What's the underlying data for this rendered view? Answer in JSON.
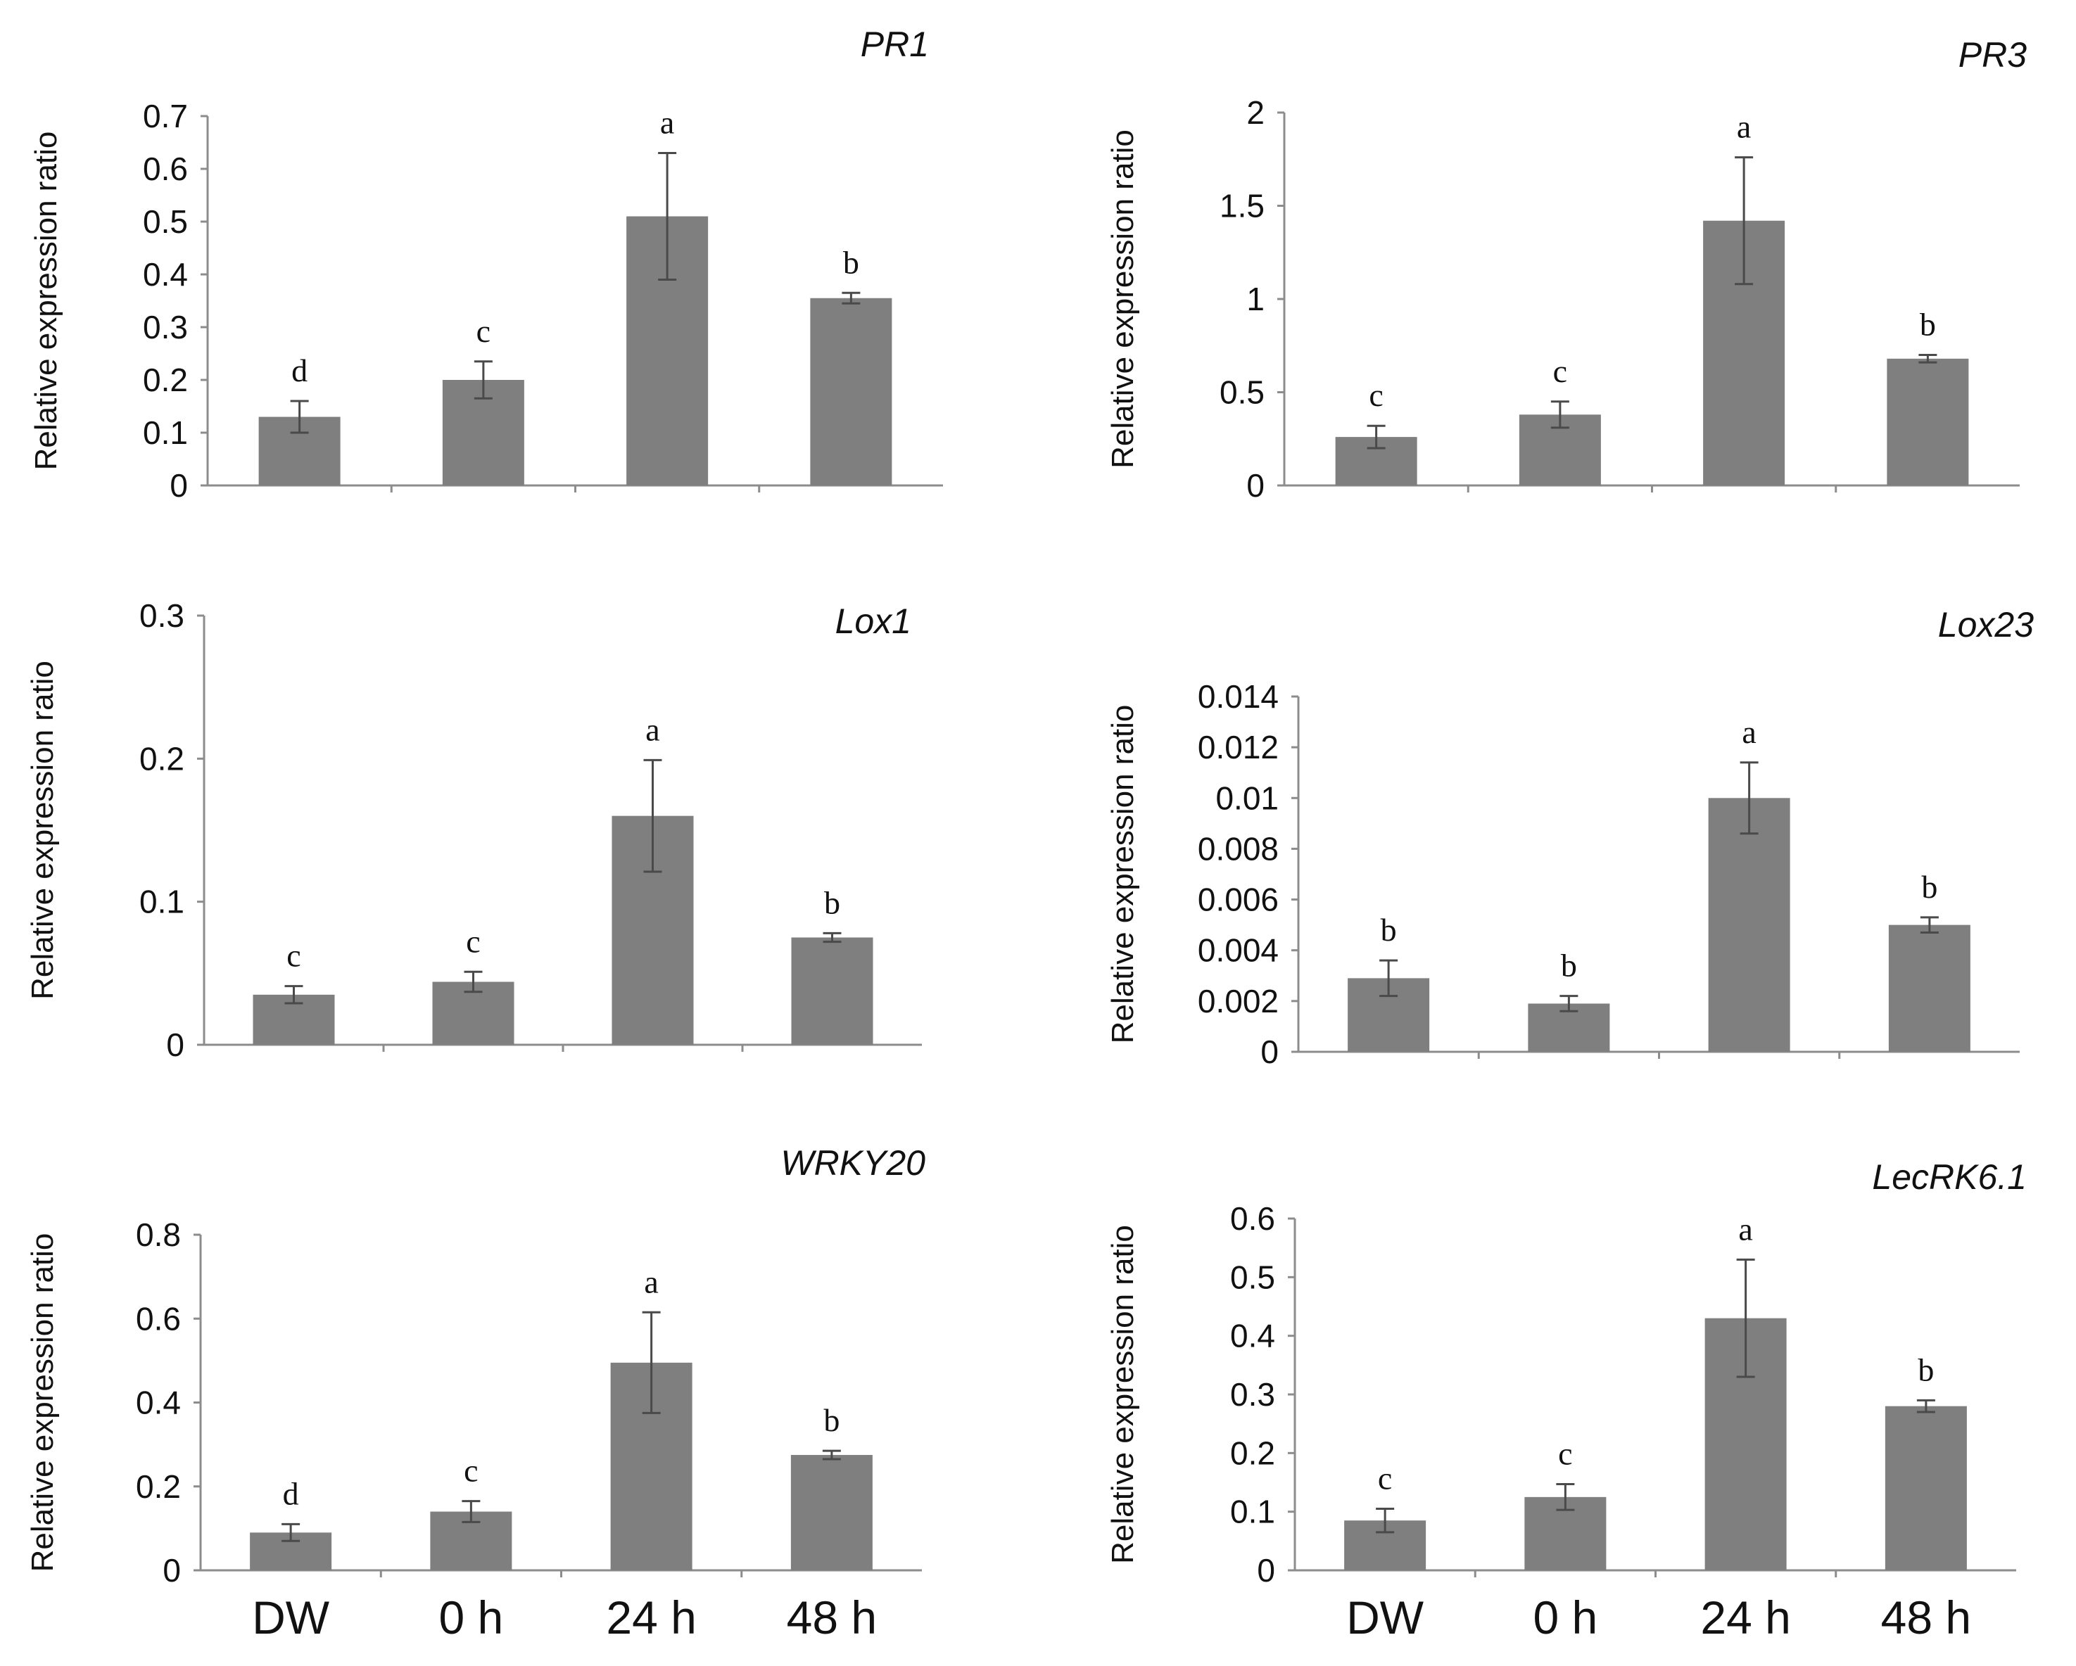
{
  "chart_data": [
    {
      "type": "bar",
      "title": "PR1",
      "ylabel": "Relative expression ratio",
      "categories": [
        "DW",
        "0 h",
        "24 h",
        "48 h"
      ],
      "values": [
        0.13,
        0.2,
        0.51,
        0.355
      ],
      "errors": [
        0.03,
        0.035,
        0.12,
        0.01
      ],
      "significance": [
        "d",
        "c",
        "a",
        "b"
      ],
      "ylim": [
        0,
        0.7
      ],
      "yticks": [
        "0",
        "0.1",
        "0.2",
        "0.3",
        "0.4",
        "0.5",
        "0.6",
        "0.7"
      ],
      "show_xlabels": false
    },
    {
      "type": "bar",
      "title": "PR3",
      "ylabel": "Relative expression ratio",
      "categories": [
        "DW",
        "0 h",
        "24 h",
        "48 h"
      ],
      "values": [
        0.26,
        0.38,
        1.42,
        0.68
      ],
      "errors": [
        0.06,
        0.07,
        0.34,
        0.02
      ],
      "significance": [
        "c",
        "c",
        "a",
        "b"
      ],
      "ylim": [
        0,
        2
      ],
      "yticks": [
        "0",
        "0.5",
        "1",
        "1.5",
        "2"
      ],
      "show_xlabels": false
    },
    {
      "type": "bar",
      "title": "Lox1",
      "ylabel": "Relative expression ratio",
      "categories": [
        "DW",
        "0 h",
        "24 h",
        "48 h"
      ],
      "values": [
        0.035,
        0.044,
        0.16,
        0.075
      ],
      "errors": [
        0.006,
        0.007,
        0.039,
        0.003
      ],
      "significance": [
        "c",
        "c",
        "a",
        "b"
      ],
      "ylim": [
        0,
        0.3
      ],
      "yticks": [
        "0",
        "0.1",
        "0.2",
        "0.3"
      ],
      "show_xlabels": false
    },
    {
      "type": "bar",
      "title": "Lox23",
      "ylabel": "Relative expression ratio",
      "categories": [
        "DW",
        "0 h",
        "24 h",
        "48 h"
      ],
      "values": [
        0.0029,
        0.0019,
        0.01,
        0.005
      ],
      "errors": [
        0.0007,
        0.0003,
        0.0014,
        0.0003
      ],
      "significance": [
        "b",
        "b",
        "a",
        "b"
      ],
      "ylim": [
        0,
        0.014
      ],
      "yticks": [
        "0",
        "0.002",
        "0.004",
        "0.006",
        "0.008",
        "0.01",
        "0.012",
        "0.014"
      ],
      "show_xlabels": false
    },
    {
      "type": "bar",
      "title": "WRKY20",
      "ylabel": "Relative expression ratio",
      "categories": [
        "DW",
        "0 h",
        "24 h",
        "48 h"
      ],
      "values": [
        0.09,
        0.14,
        0.495,
        0.275
      ],
      "errors": [
        0.02,
        0.025,
        0.12,
        0.01
      ],
      "significance": [
        "d",
        "c",
        "a",
        "b"
      ],
      "ylim": [
        0,
        0.8
      ],
      "yticks": [
        "0",
        "0.2",
        "0.4",
        "0.6",
        "0.8"
      ],
      "show_xlabels": true
    },
    {
      "type": "bar",
      "title": "LecRK6.1",
      "ylabel": "Relative expression ratio",
      "categories": [
        "DW",
        "0 h",
        "24 h",
        "48 h"
      ],
      "values": [
        0.085,
        0.125,
        0.43,
        0.28
      ],
      "errors": [
        0.02,
        0.022,
        0.1,
        0.01
      ],
      "significance": [
        "c",
        "c",
        "a",
        "b"
      ],
      "ylim": [
        0,
        0.6
      ],
      "yticks": [
        "0",
        "0.1",
        "0.2",
        "0.3",
        "0.4",
        "0.5",
        "0.6"
      ],
      "show_xlabels": true
    }
  ]
}
